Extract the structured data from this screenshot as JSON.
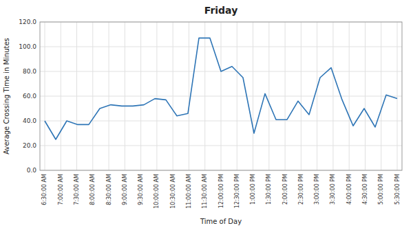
{
  "chart_data": {
    "type": "line",
    "title": "Friday",
    "xlabel": "Time of Day",
    "ylabel": "Average Crossing Time in Minutes",
    "color": "#2E75B6",
    "grid": true,
    "x": [
      0,
      0.6875,
      1.375,
      2.0625,
      2.75,
      3.4375,
      4.125,
      4.8125,
      5.5,
      6.1875,
      6.875,
      7.5625,
      8.25,
      8.9375,
      9.625,
      10.3125,
      11,
      11.6875,
      12.375,
      13.0625,
      13.75,
      14.4375,
      15.125,
      15.8125,
      16.5,
      17.1875,
      17.875,
      18.5625,
      19.25,
      19.9375,
      20.625,
      21.3125,
      22
    ],
    "values": [
      40.0,
      25.0,
      40.0,
      37.0,
      37.0,
      50.0,
      53.0,
      52.0,
      52.0,
      53.0,
      58.0,
      57.0,
      44.0,
      46.0,
      107.0,
      107.0,
      80.0,
      84.0,
      75.0,
      30.0,
      62.0,
      41.0,
      41.0,
      56.0,
      45.0,
      75.0,
      83.0,
      57.0,
      36.0,
      50.0,
      35.0,
      61.0,
      58.0
    ],
    "xlim": [
      -0.3,
      22.3
    ],
    "xticks": [
      {
        "value": 0,
        "label": "6:30:00 AM"
      },
      {
        "value": 1,
        "label": "7:00:00 AM"
      },
      {
        "value": 2,
        "label": "7:30:00 AM"
      },
      {
        "value": 3,
        "label": "8:00:00 AM"
      },
      {
        "value": 4,
        "label": "8:30:00 AM"
      },
      {
        "value": 5,
        "label": "9:00:00 AM"
      },
      {
        "value": 6,
        "label": "9:30:00 AM"
      },
      {
        "value": 7,
        "label": "10:00:00 AM"
      },
      {
        "value": 8,
        "label": "10:30:00 AM"
      },
      {
        "value": 9,
        "label": "11:00:00 AM"
      },
      {
        "value": 10,
        "label": "11:30:00 AM"
      },
      {
        "value": 11,
        "label": "12:00:00 PM"
      },
      {
        "value": 12,
        "label": "12:30:00 PM"
      },
      {
        "value": 13,
        "label": "1:00:00 PM"
      },
      {
        "value": 14,
        "label": "1:30:00 PM"
      },
      {
        "value": 15,
        "label": "2:00:00 PM"
      },
      {
        "value": 16,
        "label": "2:30:00 PM"
      },
      {
        "value": 17,
        "label": "3:00:00 PM"
      },
      {
        "value": 18,
        "label": "3:30:00 PM"
      },
      {
        "value": 19,
        "label": "4:00:00 PM"
      },
      {
        "value": 20,
        "label": "4:30:00 PM"
      },
      {
        "value": 21,
        "label": "5:00:00 PM"
      },
      {
        "value": 22,
        "label": "5:30:00 PM"
      }
    ],
    "ylim": [
      0.0,
      120.0
    ],
    "yticks": [
      {
        "value": 0.0,
        "label": "0.0"
      },
      {
        "value": 20.0,
        "label": "20.0"
      },
      {
        "value": 40.0,
        "label": "40.0"
      },
      {
        "value": 60.0,
        "label": "60.0"
      },
      {
        "value": 80.0,
        "label": "80.0"
      },
      {
        "value": 100.0,
        "label": "100.0"
      },
      {
        "value": 120.0,
        "label": "120.0"
      }
    ]
  }
}
